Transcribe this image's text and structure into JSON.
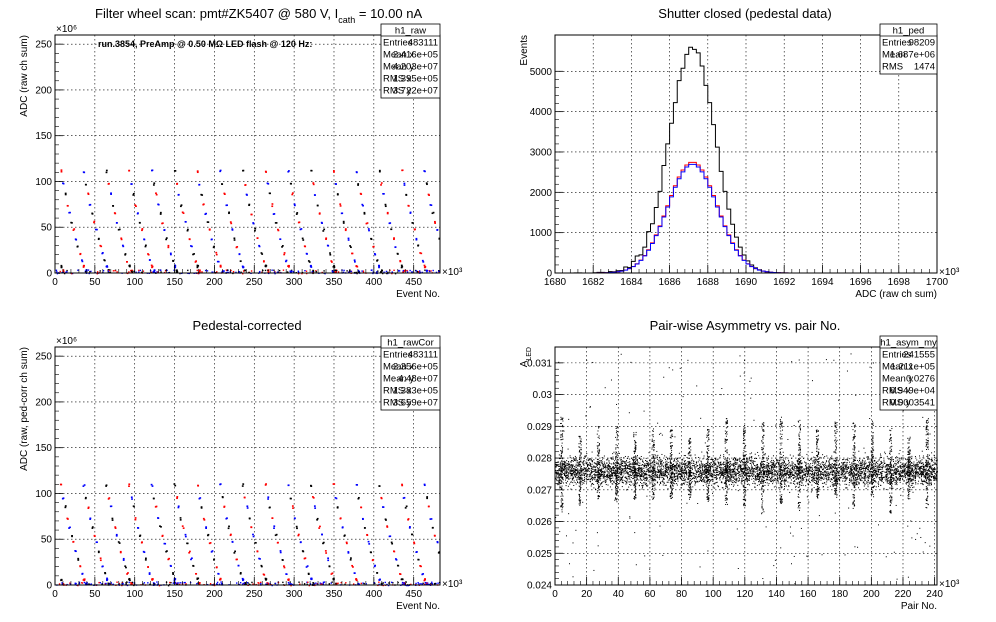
{
  "chart_data": [
    {
      "id": "p1",
      "type": "scatter",
      "title_main": "Filter wheel scan: pmt#ZK5407 @   580 V, I",
      "title_sub": "cath",
      "title_end": " = 10.00 nA",
      "ylabel": "ADC (raw ch sum)",
      "xlabel": "Event No.",
      "x_exponent": "×10³",
      "y_exponent": "×10⁶",
      "xlim": [
        0,
        483
      ],
      "ylim": [
        0,
        260
      ],
      "xticks": [
        "0",
        "50",
        "100",
        "150",
        "200",
        "250",
        "300",
        "350",
        "400",
        "450"
      ],
      "yticks": [
        "0",
        "50",
        "100",
        "150",
        "200",
        "250"
      ],
      "annotation": "run.3854, PreAmp @ 0.50 MΩ LED flash @  120 Hz:",
      "levels": [
        112,
        98,
        87,
        75,
        66,
        56,
        48,
        38,
        30,
        22,
        14,
        8,
        3
      ],
      "stats": {
        "name": "h1_raw",
        "rows": [
          [
            "Entries",
            "483111"
          ],
          [
            "Mean x",
            "2.416e+05"
          ],
          [
            "Mean y",
            "4.203e+07"
          ],
          [
            "RMS x",
            "1.395e+05"
          ],
          [
            "RMS y",
            "3.722e+07"
          ]
        ]
      }
    },
    {
      "id": "p2",
      "type": "line",
      "title": "Shutter closed (pedestal data)",
      "ylabel": "Events",
      "xlabel": "ADC (raw ch sum)",
      "x_exponent": "×10³",
      "xlim": [
        1680,
        1700
      ],
      "ylim": [
        0,
        5900
      ],
      "xticks": [
        "1680",
        "1682",
        "1684",
        "1686",
        "1688",
        "1690",
        "1692",
        "1694",
        "1696",
        "1698",
        "1700"
      ],
      "yticks": [
        "0",
        "1000",
        "2000",
        "3000",
        "4000",
        "5000"
      ],
      "series": [
        {
          "color": "#000000",
          "mean": 1687.2,
          "sigma": 1.2,
          "peak": 5500
        },
        {
          "color": "#ff0000",
          "mean": 1687.2,
          "sigma": 1.3,
          "peak": 2750
        },
        {
          "color": "#0000ff",
          "mean": 1687.2,
          "sigma": 1.3,
          "peak": 2700
        }
      ],
      "stats": {
        "name": "h1_ped",
        "rows": [
          [
            "Entries",
            "98209"
          ],
          [
            "Mean",
            "1.687e+06"
          ],
          [
            "RMS",
            "1474"
          ]
        ]
      }
    },
    {
      "id": "p3",
      "type": "scatter",
      "title": "Pedestal-corrected",
      "ylabel": "ADC (raw, ped-corr ch sum)",
      "xlabel": "Event No.",
      "x_exponent": "×10³",
      "y_exponent": "×10⁶",
      "xlim": [
        0,
        483
      ],
      "ylim": [
        0,
        260
      ],
      "xticks": [
        "0",
        "50",
        "100",
        "150",
        "200",
        "250",
        "300",
        "350",
        "400",
        "450"
      ],
      "yticks": [
        "0",
        "50",
        "100",
        "150",
        "200",
        "250"
      ],
      "levels": [
        110,
        96,
        86,
        73,
        64,
        55,
        47,
        37,
        29,
        21,
        13,
        7,
        2
      ],
      "stats": {
        "name": "h1_rawCor",
        "rows": [
          [
            "Entries",
            "483111"
          ],
          [
            "Mean x",
            "2.356e+05"
          ],
          [
            "Mean y",
            "4.48e+07"
          ],
          [
            "RMS x",
            "1.383e+05"
          ],
          [
            "RMS y",
            "3.659e+07"
          ]
        ]
      }
    },
    {
      "id": "p4",
      "type": "scatter",
      "title": "Pair-wise Asymmetry vs. pair No.",
      "ylabel": "A",
      "ylabel_sub": "LED",
      "xlabel": "Pair No.",
      "x_exponent": "×10³",
      "xlim": [
        0,
        241.5
      ],
      "ylim": [
        0.024,
        0.0315
      ],
      "xticks": [
        "0",
        "20",
        "40",
        "60",
        "80",
        "100",
        "120",
        "140",
        "160",
        "180",
        "200",
        "220",
        "240"
      ],
      "yticks": [
        "0.024",
        "0.025",
        "0.026",
        "0.027",
        "0.028",
        "0.029",
        "0.03",
        "0.031"
      ],
      "band_center": 0.0276,
      "band_halfwidth": 0.0004,
      "stats": {
        "name": "h1_asym_my",
        "rows": [
          [
            "Entries",
            "241555"
          ],
          [
            "Mean x",
            "1.211e+05"
          ],
          [
            "Mean y",
            "0.0276"
          ],
          [
            "RMS x",
            "6.949e+04"
          ],
          [
            "RMS y",
            "0.0003541"
          ]
        ]
      }
    }
  ]
}
